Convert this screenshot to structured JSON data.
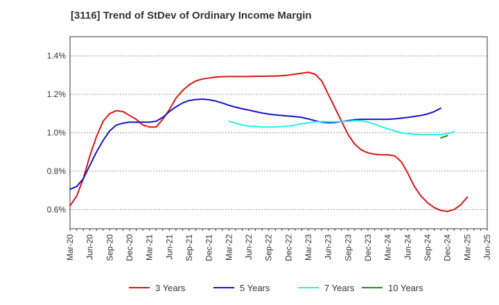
{
  "chart_data": {
    "type": "line",
    "title": "[3116]  Trend of StDev of Ordinary Income Margin",
    "xlabel": "",
    "ylabel": "",
    "x_tick_labels": [
      "Mar-20",
      "Jun-20",
      "Sep-20",
      "Dec-20",
      "Mar-21",
      "Jun-21",
      "Sep-21",
      "Dec-21",
      "Mar-22",
      "Jun-22",
      "Sep-22",
      "Dec-22",
      "Mar-23",
      "Jun-23",
      "Sep-23",
      "Dec-23",
      "Mar-24",
      "Jun-24",
      "Sep-24",
      "Dec-24",
      "Mar-25",
      "Jun-25"
    ],
    "y_ticks": [
      0.6,
      0.8,
      1.0,
      1.2,
      1.4
    ],
    "y_tick_labels": [
      "0.6%",
      "0.8%",
      "1.0%",
      "1.2%",
      "1.4%"
    ],
    "ylim": [
      0.5,
      1.5
    ],
    "y_unit": "%",
    "grid": "horizontal dashed",
    "legend_position": "bottom",
    "x_start": "Mar-20",
    "x_step_months": 1,
    "series": [
      {
        "name": "3 Years",
        "color": "#dd1111",
        "start_index": 0,
        "values": [
          0.62,
          0.67,
          0.76,
          0.88,
          0.98,
          1.06,
          1.1,
          1.115,
          1.11,
          1.09,
          1.07,
          1.04,
          1.03,
          1.03,
          1.07,
          1.12,
          1.18,
          1.22,
          1.25,
          1.27,
          1.28,
          1.285,
          1.29,
          1.292,
          1.293,
          1.293,
          1.293,
          1.293,
          1.294,
          1.294,
          1.295,
          1.295,
          1.297,
          1.3,
          1.305,
          1.31,
          1.315,
          1.305,
          1.27,
          1.2,
          1.13,
          1.06,
          0.99,
          0.94,
          0.91,
          0.895,
          0.888,
          0.885,
          0.885,
          0.88,
          0.85,
          0.79,
          0.72,
          0.67,
          0.635,
          0.61,
          0.595,
          0.59,
          0.6,
          0.625,
          0.665
        ]
      },
      {
        "name": "5 Years",
        "color": "#1111cc",
        "start_index": 0,
        "values": [
          0.705,
          0.72,
          0.76,
          0.83,
          0.9,
          0.96,
          1.01,
          1.04,
          1.05,
          1.055,
          1.055,
          1.055,
          1.055,
          1.06,
          1.08,
          1.11,
          1.135,
          1.155,
          1.168,
          1.173,
          1.175,
          1.172,
          1.165,
          1.155,
          1.143,
          1.133,
          1.125,
          1.118,
          1.11,
          1.103,
          1.097,
          1.093,
          1.09,
          1.087,
          1.084,
          1.08,
          1.072,
          1.063,
          1.055,
          1.052,
          1.053,
          1.058,
          1.063,
          1.068,
          1.07,
          1.07,
          1.07,
          1.07,
          1.07,
          1.072,
          1.076,
          1.08,
          1.085,
          1.09,
          1.098,
          1.11,
          1.128
        ]
      },
      {
        "name": "7 Years",
        "color": "#22eeee",
        "start_index": 24,
        "values": [
          1.06,
          1.05,
          1.04,
          1.035,
          1.033,
          1.03,
          1.03,
          1.03,
          1.032,
          1.035,
          1.04,
          1.047,
          1.052,
          1.057,
          1.058,
          1.057,
          1.057,
          1.058,
          1.06,
          1.063,
          1.062,
          1.055,
          1.045,
          1.032,
          1.02,
          1.01,
          1.0,
          0.995,
          0.992,
          0.99,
          0.99,
          0.99,
          0.99,
          0.995,
          1.005
        ]
      },
      {
        "name": "10 Years",
        "color": "#228822",
        "start_index": 56,
        "values": [
          0.973,
          0.985
        ]
      }
    ]
  }
}
